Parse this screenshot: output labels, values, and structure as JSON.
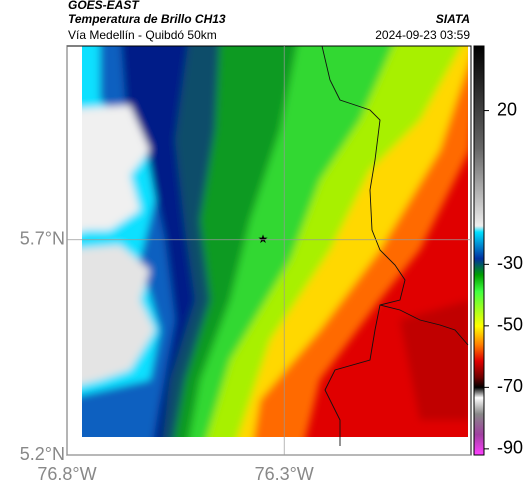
{
  "header": {
    "title": "GOES-EAST",
    "subtitle": "Temperatura de Brillo CH13",
    "source": "SIATA",
    "location": "Vía Medellín - Quibdó 50km",
    "datetime": "2024-09-23 03:59"
  },
  "map": {
    "lon_range": [
      -76.8,
      -75.87
    ],
    "lat_range": [
      5.2,
      6.15
    ],
    "lon_ticks": [
      {
        "value": -76.8,
        "label": "76.8°W"
      },
      {
        "value": -76.3,
        "label": "76.3°W"
      }
    ],
    "lat_ticks": [
      {
        "value": 5.7,
        "label": "5.7°N"
      },
      {
        "value": 5.2,
        "label": "5.2°N"
      }
    ]
  },
  "colorbar": {
    "range": [
      -92,
      41
    ],
    "ticks": [
      20,
      -30,
      -50,
      -70,
      -90
    ]
  }
}
